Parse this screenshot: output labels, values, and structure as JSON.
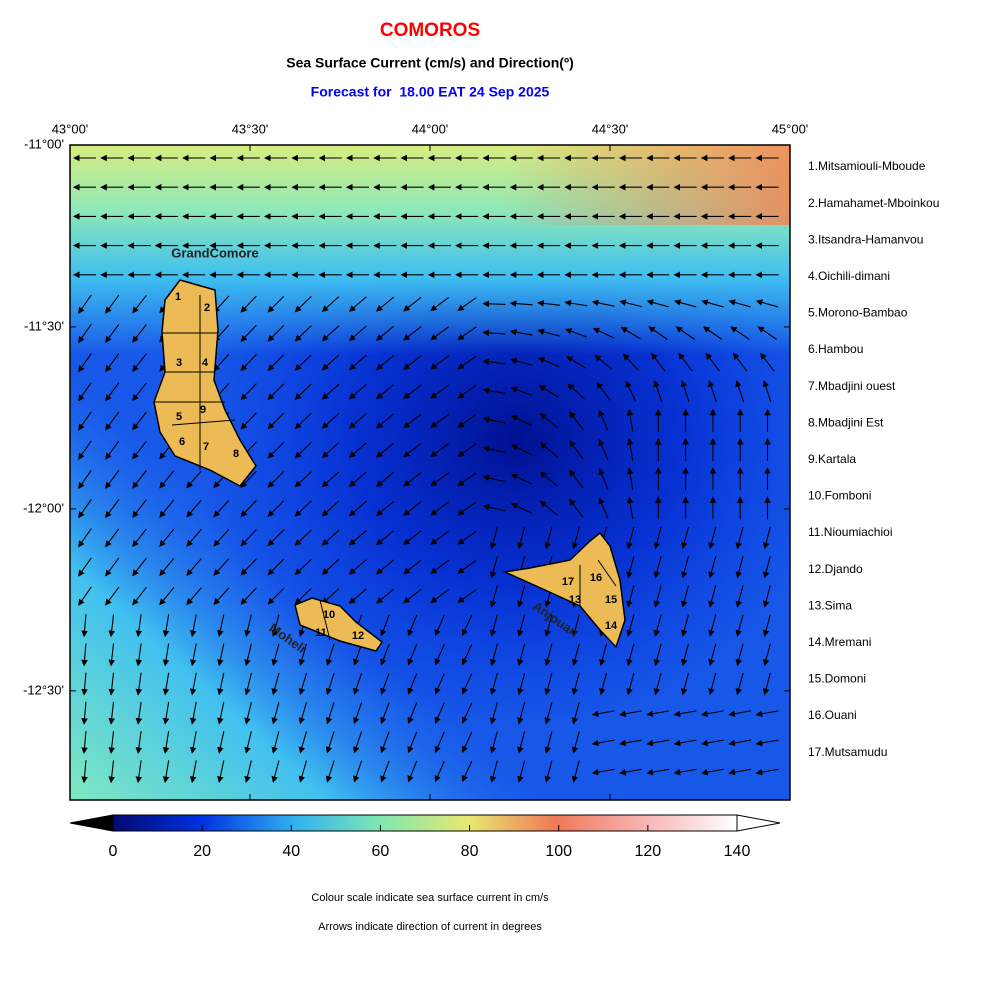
{
  "map": {
    "title": "COMOROS",
    "subtitle": "Sea Surface Current (cm/s) and Direction(º)",
    "forecast": "Forecast for  18.00 EAT 24 Sep 2025",
    "lon_range": [
      43,
      45
    ],
    "lat_range": [
      -12.8,
      -11
    ],
    "lon_ticks": [
      {
        "value": 43,
        "label": "43°00'"
      },
      {
        "value": 43.5,
        "label": "43°30'"
      },
      {
        "value": 44,
        "label": "44°00'"
      },
      {
        "value": 44.5,
        "label": "44°30'"
      },
      {
        "value": 45,
        "label": "45°00'"
      }
    ],
    "lat_ticks": [
      {
        "value": -11,
        "label": "-11°00'"
      },
      {
        "value": -11.5,
        "label": "-11°30'"
      },
      {
        "value": -12,
        "label": "-12°00'"
      },
      {
        "value": -12.5,
        "label": "-12°30'"
      }
    ],
    "island_labels": [
      "GrandComore",
      "Moheli",
      "Anjouan"
    ],
    "region_numbers": [
      "1",
      "2",
      "3",
      "4",
      "5",
      "6",
      "7",
      "8",
      "9",
      "10",
      "11",
      "12",
      "13",
      "14",
      "15",
      "16",
      "17"
    ],
    "districts": [
      "1.Mitsamiouli-Mboude",
      "2.Hamahamet-Mboinkou",
      "3.Itsandra-Hamanvou",
      "4.Oichili-dimani",
      "5.Morono-Bambao",
      "6.Hambou",
      "7.Mbadjini ouest",
      "8.Mbadjini Est",
      "9.Kartala",
      "10.Fomboni",
      "11.Nioumiachioi",
      "12.Djando",
      "13.Sima",
      "14.Mremani",
      "15.Domoni",
      "16.Ouani",
      "17.Mutsamudu"
    ],
    "colorbar": {
      "range": [
        0,
        140
      ],
      "ticks": [
        0,
        20,
        40,
        60,
        80,
        100,
        120,
        140
      ]
    },
    "notes": [
      "Colour scale indicate sea surface current in cm/s",
      "Arrows indicate direction of current in degrees"
    ]
  }
}
